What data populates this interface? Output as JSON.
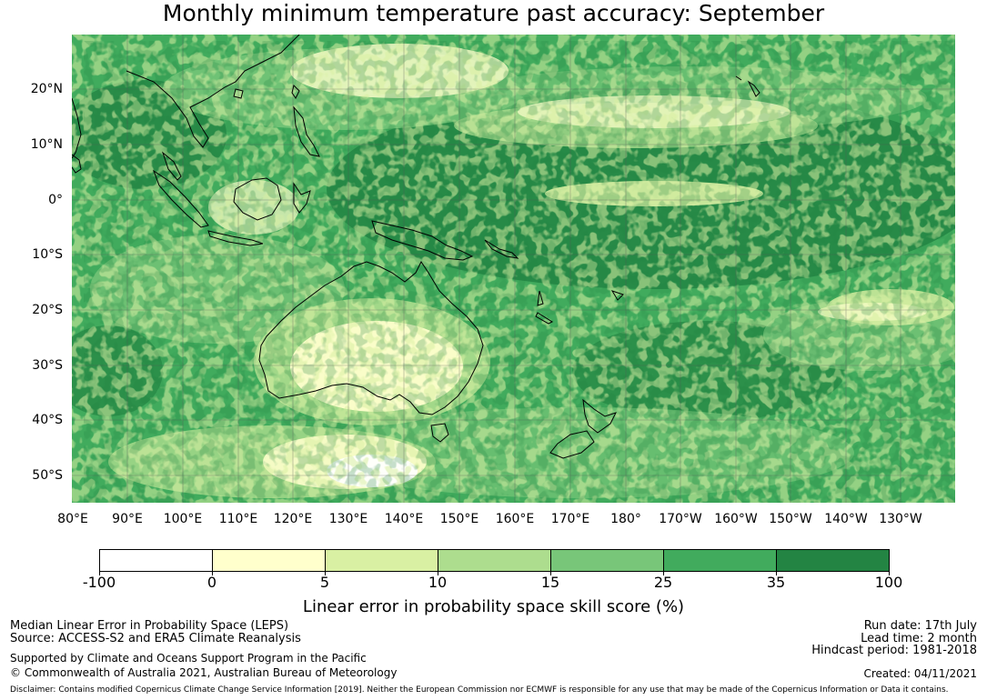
{
  "title": "Monthly minimum temperature past accuracy: September",
  "map": {
    "lat_labels": [
      "20°N",
      "10°N",
      "0°",
      "10°S",
      "20°S",
      "30°S",
      "40°S",
      "50°S"
    ],
    "lon_labels": [
      "80°E",
      "90°E",
      "100°E",
      "110°E",
      "120°E",
      "130°E",
      "140°E",
      "150°E",
      "160°E",
      "170°E",
      "180°",
      "170°W",
      "160°W",
      "150°W",
      "140°W",
      "130°W"
    ],
    "land_outline_color": "#000000",
    "gridline_color": "#555555"
  },
  "colorbar": {
    "title": "Linear error in probability space skill score (%)",
    "tick_labels": [
      "-100",
      "0",
      "5",
      "10",
      "15",
      "25",
      "35",
      "100"
    ],
    "colors": [
      "#ffffff",
      "#ffffcc",
      "#d9f0a3",
      "#addd8e",
      "#78c679",
      "#41ab5d",
      "#238443"
    ]
  },
  "info": {
    "method": "Median Linear Error in Probability Space (LEPS)",
    "source": "Source: ACCESS-S2 and ERA5 Climate Reanalysis",
    "support": "Supported by Climate and Oceans Support Program in the Pacific",
    "copyright": "© Commonwealth of Australia 2021, Australian Bureau of Meteorology",
    "run_date": "Run date: 17th July",
    "lead_time": "Lead time: 2 month",
    "hindcast": "Hindcast period: 1981-2018",
    "created": "Created: 04/11/2021",
    "disclaimer": "Disclaimer: Contains modified Copernicus Climate Change Service Information [2019]. Neither the European Commission nor ECMWF is responsible for any use that may be made of the Copernicus Information or Data it contains."
  }
}
